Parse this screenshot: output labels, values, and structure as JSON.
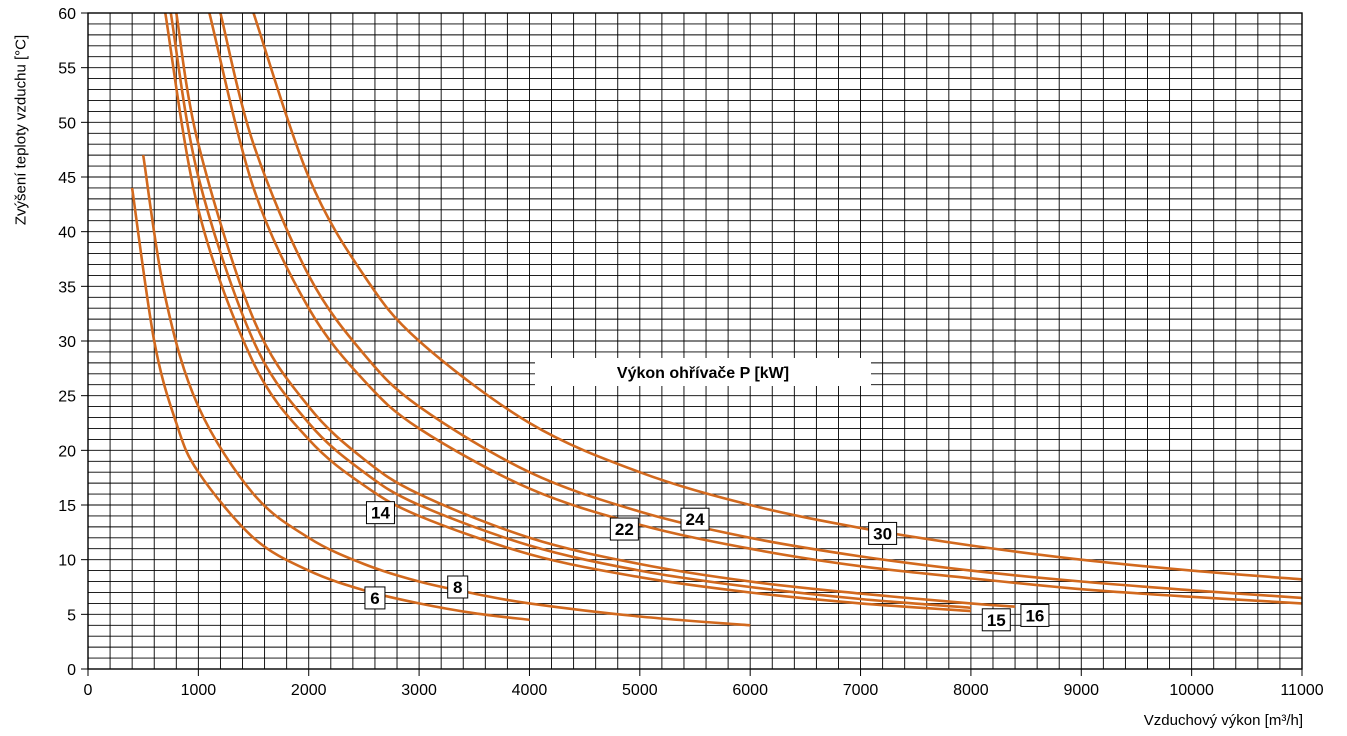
{
  "chart_data": {
    "type": "line",
    "title": "Výkon ohřívače P [kW]",
    "xlabel": "Vzduchový výkon [m³/h]",
    "ylabel": "Zvýšení teploty vzduchu [°C]",
    "xlim": [
      0,
      11000
    ],
    "ylim": [
      0,
      60
    ],
    "x_ticks": [
      "0",
      "1000",
      "2000",
      "3000",
      "4000",
      "5000",
      "6000",
      "7000",
      "8000",
      "9000",
      "10000",
      "11000"
    ],
    "y_ticks": [
      "0",
      "5",
      "10",
      "15",
      "20",
      "25",
      "30",
      "35",
      "40",
      "45",
      "50",
      "55",
      "60"
    ],
    "grid": true,
    "line_color": "#d2691e",
    "series": [
      {
        "name": "6",
        "points": [
          [
            400,
            44
          ],
          [
            600,
            30
          ],
          [
            800,
            22.5
          ],
          [
            1000,
            18
          ],
          [
            1500,
            12
          ],
          [
            2000,
            9
          ],
          [
            2500,
            7.2
          ],
          [
            3000,
            6
          ],
          [
            3500,
            5.1
          ],
          [
            4000,
            4.5
          ]
        ]
      },
      {
        "name": "8",
        "points": [
          [
            500,
            47
          ],
          [
            700,
            34
          ],
          [
            1000,
            24
          ],
          [
            1500,
            16
          ],
          [
            2000,
            12
          ],
          [
            2500,
            9.6
          ],
          [
            3000,
            8
          ],
          [
            3500,
            6.9
          ],
          [
            4000,
            6
          ],
          [
            5000,
            4.8
          ],
          [
            6000,
            4
          ]
        ]
      },
      {
        "name": "14",
        "points": [
          [
            750,
            60
          ],
          [
            1000,
            45
          ],
          [
            1500,
            30
          ],
          [
            2000,
            22.5
          ],
          [
            2500,
            18
          ],
          [
            3000,
            15
          ],
          [
            4000,
            11.3
          ],
          [
            5000,
            9
          ],
          [
            6000,
            7.5
          ],
          [
            7000,
            6.4
          ],
          [
            8000,
            5.6
          ]
        ]
      },
      {
        "name": "15",
        "points": [
          [
            700,
            60
          ],
          [
            1000,
            42
          ],
          [
            1500,
            28
          ],
          [
            2000,
            21
          ],
          [
            2500,
            16.8
          ],
          [
            3000,
            14
          ],
          [
            4000,
            10.5
          ],
          [
            5000,
            8.4
          ],
          [
            6000,
            7
          ],
          [
            7000,
            6
          ],
          [
            8000,
            5.3
          ]
        ]
      },
      {
        "name": "16",
        "points": [
          [
            800,
            60
          ],
          [
            1000,
            48
          ],
          [
            1500,
            32
          ],
          [
            2000,
            24
          ],
          [
            2500,
            19.2
          ],
          [
            3000,
            16
          ],
          [
            4000,
            12
          ],
          [
            5000,
            9.6
          ],
          [
            6000,
            8
          ],
          [
            7000,
            6.9
          ],
          [
            8000,
            6
          ],
          [
            8400,
            5.7
          ]
        ]
      },
      {
        "name": "22",
        "points": [
          [
            1100,
            60
          ],
          [
            1500,
            44
          ],
          [
            2000,
            33
          ],
          [
            2500,
            26.4
          ],
          [
            3000,
            22
          ],
          [
            4000,
            16.5
          ],
          [
            5000,
            13.2
          ],
          [
            6000,
            11
          ],
          [
            7000,
            9.4
          ],
          [
            8000,
            8.3
          ],
          [
            9000,
            7.3
          ],
          [
            10000,
            6.6
          ],
          [
            11000,
            6
          ]
        ]
      },
      {
        "name": "24",
        "points": [
          [
            1200,
            60
          ],
          [
            1500,
            48
          ],
          [
            2000,
            36
          ],
          [
            2500,
            28.8
          ],
          [
            3000,
            24
          ],
          [
            4000,
            18
          ],
          [
            5000,
            14.4
          ],
          [
            6000,
            12
          ],
          [
            7000,
            10.3
          ],
          [
            8000,
            9
          ],
          [
            9000,
            8
          ],
          [
            10000,
            7.2
          ],
          [
            11000,
            6.5
          ]
        ]
      },
      {
        "name": "30",
        "points": [
          [
            1500,
            60
          ],
          [
            2000,
            45
          ],
          [
            2500,
            36
          ],
          [
            3000,
            30
          ],
          [
            4000,
            22.5
          ],
          [
            5000,
            18
          ],
          [
            6000,
            15
          ],
          [
            7000,
            12.9
          ],
          [
            8000,
            11.3
          ],
          [
            9000,
            10
          ],
          [
            10000,
            9
          ],
          [
            11000,
            8.2
          ]
        ]
      }
    ],
    "curve_labels": [
      {
        "text": "6",
        "x": 2600,
        "y": 6.5
      },
      {
        "text": "8",
        "x": 3350,
        "y": 7.5
      },
      {
        "text": "14",
        "x": 2650,
        "y": 14.3
      },
      {
        "text": "15",
        "x": 8230,
        "y": 4.5
      },
      {
        "text": "16",
        "x": 8580,
        "y": 4.9
      },
      {
        "text": "22",
        "x": 4860,
        "y": 12.8
      },
      {
        "text": "24",
        "x": 5500,
        "y": 13.7
      },
      {
        "text": "30",
        "x": 7200,
        "y": 12.4
      }
    ]
  }
}
